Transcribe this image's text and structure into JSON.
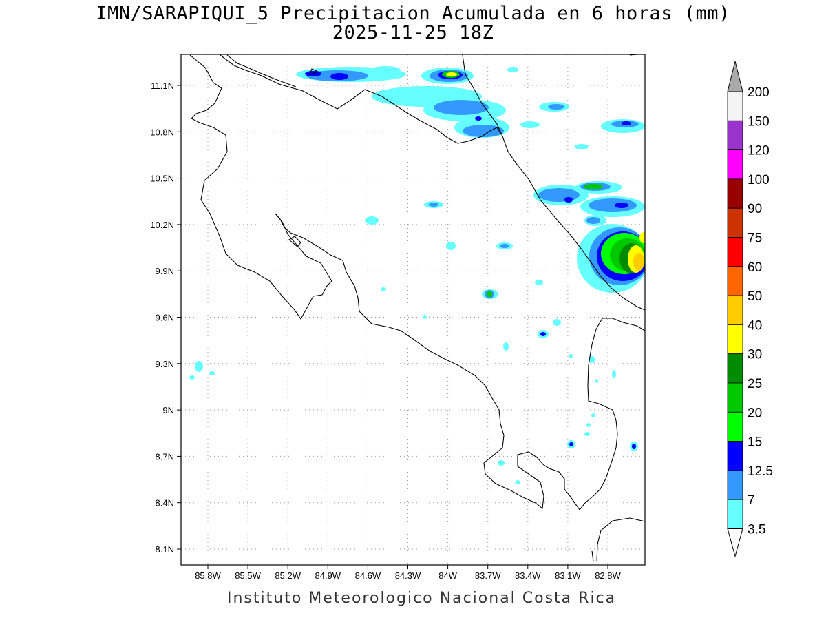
{
  "title": {
    "line1": "IMN/SARAPIQUI_5 Precipitacion Acumulada en 6 horas (mm)",
    "line2": "2025-11-25 18Z"
  },
  "footer": "Instituto Meteorologico Nacional Costa Rica",
  "map": {
    "lat_ticks": [
      "11.1N",
      "10.8N",
      "10.5N",
      "10.2N",
      "9.9N",
      "9.6N",
      "9.3N",
      "9N",
      "8.7N",
      "8.4N",
      "8.1N"
    ],
    "lon_ticks": [
      "85.8W",
      "85.5W",
      "85.2W",
      "84.9W",
      "84.6W",
      "84.3W",
      "84W",
      "83.7W",
      "83.4W",
      "83.1W",
      "82.8W"
    ],
    "grid": "dotted",
    "coastline_color": "#000000"
  },
  "colorbar": {
    "labels": [
      "200",
      "150",
      "120",
      "100",
      "90",
      "75",
      "60",
      "50",
      "40",
      "30",
      "25",
      "20",
      "15",
      "12.5",
      "7",
      "3.5"
    ],
    "colors": [
      "#f4f4f4",
      "#9933cc",
      "#ff00ff",
      "#990000",
      "#cc3300",
      "#ff0000",
      "#ff6600",
      "#ffcc00",
      "#ffff00",
      "#008c00",
      "#00c800",
      "#00ff00",
      "#0000ff",
      "#3399ff",
      "#66ffff"
    ],
    "over_color": "#aaaaaa",
    "under_color": "#ffffff"
  }
}
